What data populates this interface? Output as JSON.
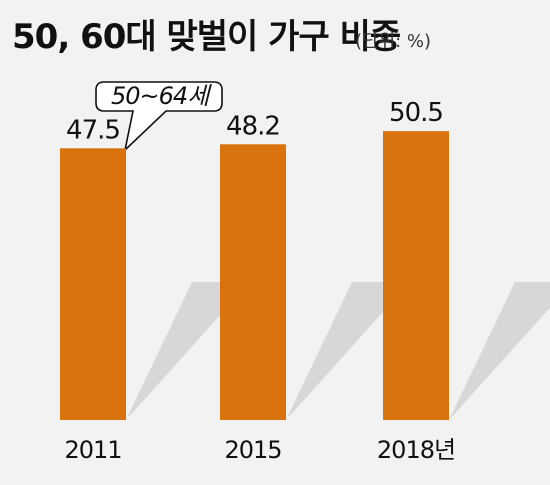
{
  "colors": {
    "background": "#f2f2f2",
    "bar": "#d9730d",
    "shadow": "#d7d7d7",
    "text": "#111111"
  },
  "chart_data": {
    "type": "bar",
    "title": "50, 60대 맞벌이 가구 비중",
    "unit_label": "(단위: %)",
    "categories": [
      "2011",
      "2015",
      "2018년"
    ],
    "values": [
      47.5,
      48.2,
      50.5
    ],
    "value_labels": [
      "47.5",
      "48.2",
      "50.5"
    ],
    "annotation": "50~64세"
  }
}
